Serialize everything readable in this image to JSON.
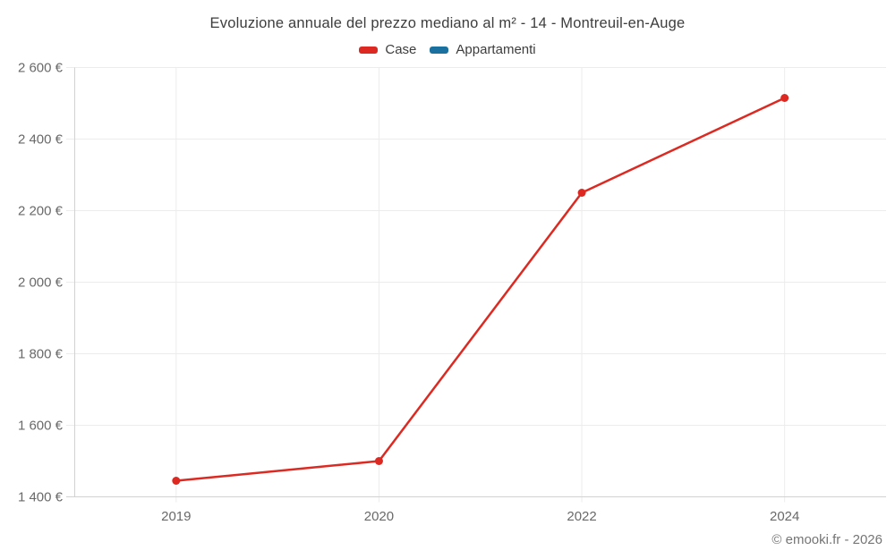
{
  "page": {
    "background": "#ffffff",
    "footer": "© emooki.fr - 2026"
  },
  "colors": {
    "title_text": "#3d3d3d",
    "tick_text": "#696969",
    "footer_text": "#757575",
    "gridline": "#ececec",
    "axis_border": "#d2d2d2",
    "case_red": "#dc2a22",
    "appartamenti_blue": "#1a709f"
  },
  "chart_data": {
    "type": "line",
    "title": "Evoluzione annuale del prezzo mediano al m² - 14 - Montreuil-en-Auge",
    "categories": [
      "2019",
      "2020",
      "2022",
      "2024"
    ],
    "series": [
      {
        "name": "Case",
        "color": "#dc2a22",
        "values": [
          1445,
          1500,
          2250,
          2515
        ]
      },
      {
        "name": "Appartamenti",
        "color": "#1a709f",
        "values": []
      }
    ],
    "ylim": [
      1400,
      2600
    ],
    "y_ticks": [
      {
        "value": 2600,
        "label": "2 600 €"
      },
      {
        "value": 2400,
        "label": "2 400 €"
      },
      {
        "value": 2200,
        "label": "2 200 €"
      },
      {
        "value": 2000,
        "label": "2 000 €"
      },
      {
        "value": 1800,
        "label": "1 800 €"
      },
      {
        "value": 1600,
        "label": "1 600 €"
      },
      {
        "value": 1400,
        "label": "1 400 €"
      }
    ],
    "xlabel": "",
    "ylabel": "",
    "grid": true,
    "legend_position": "top",
    "currency": "€"
  }
}
